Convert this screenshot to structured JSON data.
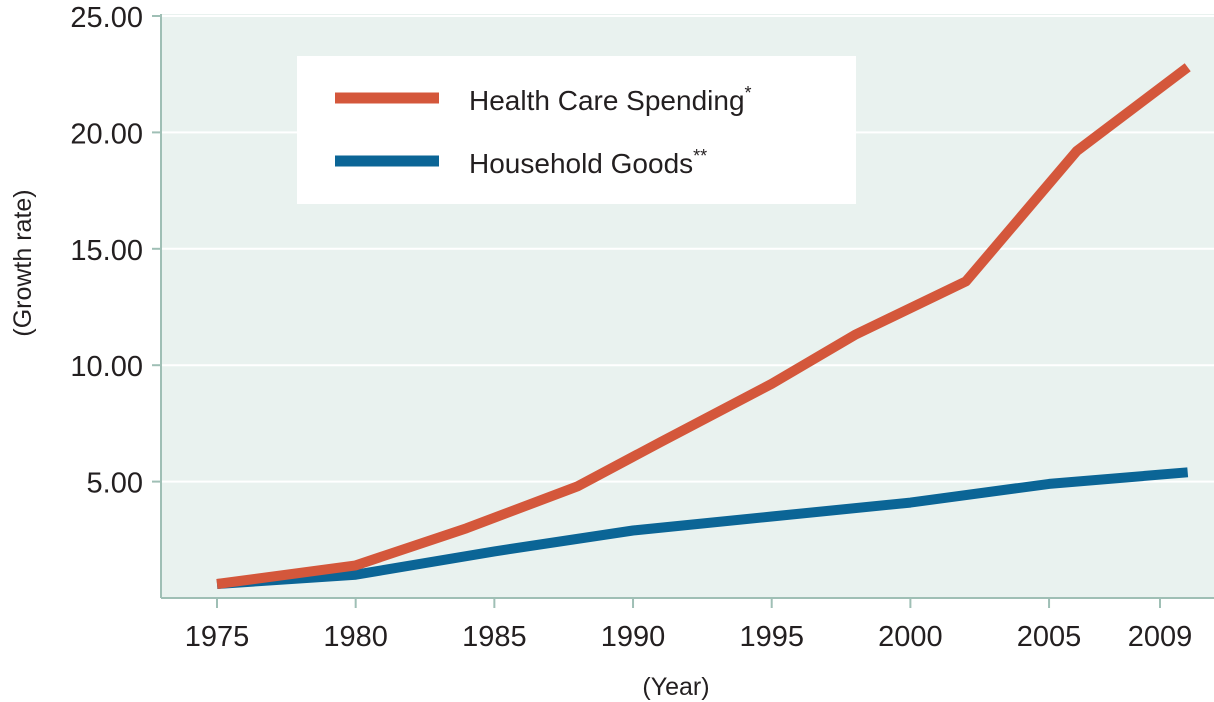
{
  "chart_data": {
    "type": "line",
    "xlabel": "(Year)",
    "ylabel": "(Growth rate)",
    "xlim": [
      1975,
      2010
    ],
    "ylim": [
      0,
      25
    ],
    "x_ticks": [
      1975,
      1980,
      1985,
      1990,
      1995,
      2000,
      2005,
      2009
    ],
    "y_ticks": [
      "5.00",
      "10.00",
      "15.00",
      "20.00",
      "25.00"
    ],
    "y_tick_values": [
      5,
      10,
      15,
      20,
      25
    ],
    "grid": "horizontal",
    "legend_position": "top-left",
    "series": [
      {
        "name": "Health Care Spending",
        "marker": "*",
        "color": "#d4573b",
        "x": [
          1975,
          1980,
          1984,
          1988,
          1991,
          1995,
          1998,
          2002,
          2006,
          2010
        ],
        "y": [
          0.6,
          1.4,
          3.0,
          4.8,
          6.7,
          9.2,
          11.3,
          13.6,
          19.2,
          22.8
        ]
      },
      {
        "name": "Household Goods",
        "marker": "**",
        "color": "#0b6596",
        "x": [
          1975,
          1980,
          1985,
          1990,
          1995,
          2000,
          2005,
          2010
        ],
        "y": [
          0.6,
          1.0,
          2.0,
          2.9,
          3.5,
          4.1,
          4.9,
          5.4
        ]
      }
    ]
  },
  "colors": {
    "plot_background": "#e9f2ef",
    "gridline": "#ffffff",
    "axis": "#9fbfb5"
  }
}
